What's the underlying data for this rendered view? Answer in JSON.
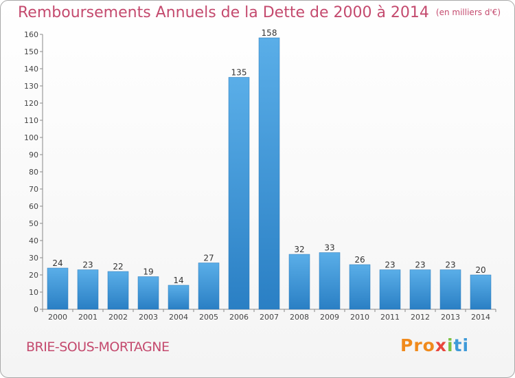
{
  "title": "Remboursements Annuels de la Dette de 2000 à 2014",
  "unit": "(en milliers d'€)",
  "commune": "BRIE-SOUS-MORTAGNE",
  "brand": {
    "p1": "Pro",
    "p2": "x",
    "p3": "i",
    "p4": "ti"
  },
  "colors": {
    "bar_top": "#5aaee8",
    "bar_bottom": "#2a7fc4",
    "title": "#c44a6e"
  },
  "chart_data": {
    "type": "bar",
    "title": "Remboursements Annuels de la Dette de 2000 à 2014",
    "xlabel": "",
    "ylabel": "",
    "ylim": [
      0,
      160
    ],
    "yticks": [
      0,
      10,
      20,
      30,
      40,
      50,
      60,
      70,
      80,
      90,
      100,
      110,
      120,
      130,
      140,
      150,
      160
    ],
    "grid": false,
    "categories": [
      "2000",
      "2001",
      "2002",
      "2003",
      "2004",
      "2005",
      "2006",
      "2007",
      "2008",
      "2009",
      "2010",
      "2011",
      "2012",
      "2013",
      "2014"
    ],
    "values": [
      24,
      23,
      22,
      19,
      14,
      27,
      135,
      158,
      32,
      33,
      26,
      23,
      23,
      23,
      20
    ]
  }
}
